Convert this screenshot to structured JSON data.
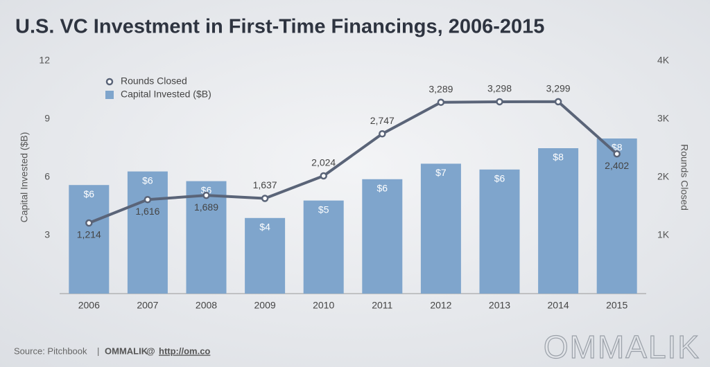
{
  "chart_data": {
    "type": "bar-line",
    "title": "U.S. VC Investment in First-Time Financings, 2006-2015",
    "categories": [
      "2006",
      "2007",
      "2008",
      "2009",
      "2010",
      "2011",
      "2012",
      "2013",
      "2014",
      "2015"
    ],
    "series": [
      {
        "name": "Capital Invested ($B)",
        "type": "bar",
        "color": "#7fa5cc",
        "values": [
          5.6,
          6.3,
          5.8,
          3.9,
          4.8,
          5.9,
          6.7,
          6.4,
          7.5,
          8.0
        ],
        "value_labels": [
          "$6",
          "$6",
          "$6",
          "$4",
          "$5",
          "$6",
          "$7",
          "$6",
          "$8",
          "$8"
        ]
      },
      {
        "name": "Rounds Closed",
        "type": "line",
        "axis": "y2",
        "color": "#5a6478",
        "values": [
          1214,
          1616,
          1689,
          1637,
          2024,
          2747,
          3289,
          3298,
          3299,
          2402
        ],
        "value_labels": [
          "1,214",
          "1,616",
          "1,689",
          "1,637",
          "2,024",
          "2,747",
          "3,289",
          "3,298",
          "3,299",
          "2,402"
        ]
      }
    ],
    "y_label": "Capital Invested ($B)",
    "y2_label": "Rounds Closed",
    "ylim": [
      0,
      12
    ],
    "yticks": [
      3,
      6,
      9,
      12
    ],
    "y2lim": [
      0,
      4000
    ],
    "y2ticks": [
      {
        "value": 1000,
        "label": "1K"
      },
      {
        "value": 2000,
        "label": "2K"
      },
      {
        "value": 3000,
        "label": "3K"
      },
      {
        "value": 4000,
        "label": "4K"
      }
    ],
    "legend": "top-left",
    "footer": {
      "source": "Source: Pitchbook",
      "separator": "|",
      "brand": "OMMALIK",
      "at": "@",
      "url": "http://om.co"
    },
    "logo": "OMMALIK"
  }
}
